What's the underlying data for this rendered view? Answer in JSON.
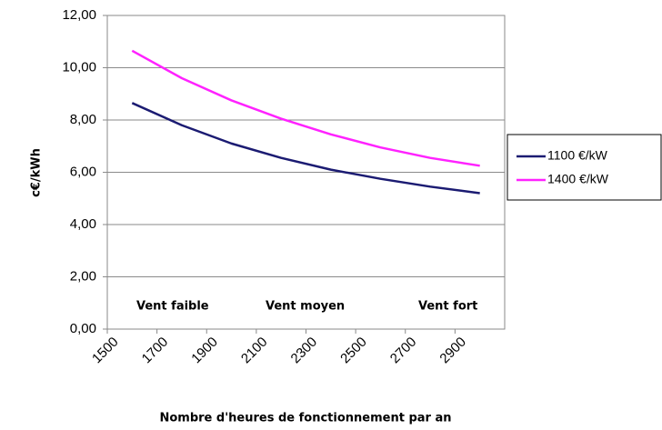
{
  "chart_data": {
    "type": "line",
    "y_label": "c€/kWh",
    "x_label": "Nombre d'heures de fonctionnement par an",
    "x": [
      1600,
      1800,
      2000,
      2200,
      2400,
      2600,
      2800,
      3000
    ],
    "series": [
      {
        "name": "1100 €/kW",
        "color": "#1b1b72",
        "values": [
          8.65,
          7.8,
          7.1,
          6.55,
          6.1,
          5.75,
          5.45,
          5.2
        ]
      },
      {
        "name": "1400 €/kW",
        "color": "#ff22ff",
        "values": [
          10.65,
          9.6,
          8.75,
          8.05,
          7.45,
          6.95,
          6.55,
          6.25
        ]
      }
    ],
    "xlim": [
      1500,
      3100
    ],
    "xticks": [
      1500,
      1700,
      1900,
      2100,
      2300,
      2500,
      2700,
      2900
    ],
    "ylim": [
      0,
      12
    ],
    "yticks": [
      {
        "value": 0,
        "label": "0,00"
      },
      {
        "value": 2,
        "label": "2,00"
      },
      {
        "value": 4,
        "label": "4,00"
      },
      {
        "value": 6,
        "label": "6,00"
      },
      {
        "value": 8,
        "label": "8,00"
      },
      {
        "value": 10,
        "label": "10,00"
      },
      {
        "value": 12,
        "label": "12,00"
      }
    ],
    "annotations": [
      "Vent faible",
      "Vent moyen",
      "Vent fort"
    ],
    "grid": true,
    "legend": "right"
  }
}
